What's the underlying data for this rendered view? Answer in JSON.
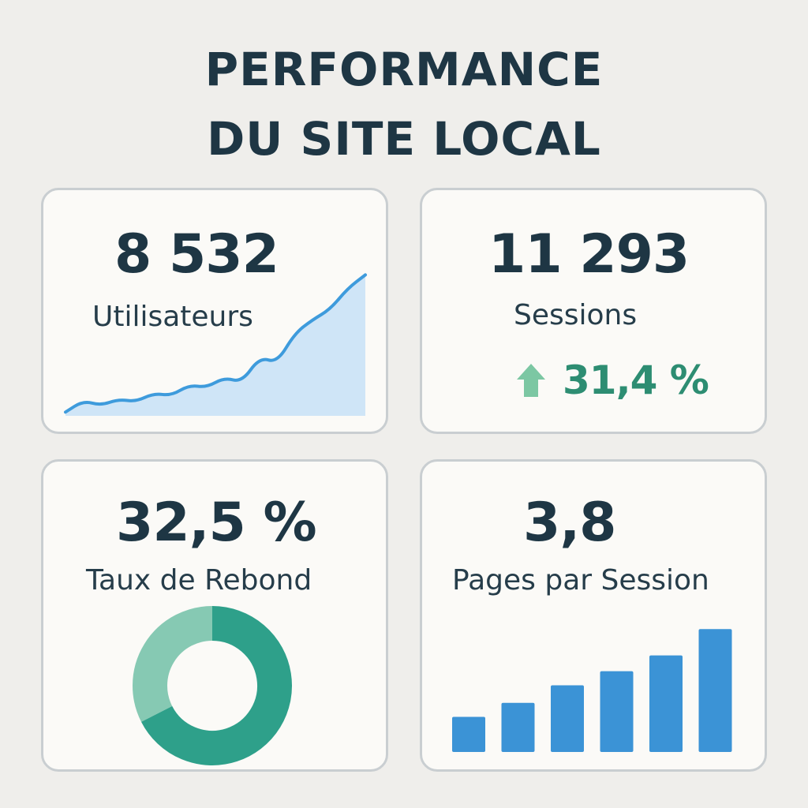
{
  "title": {
    "line1": "PERFORMANCE",
    "line2": "DU SITE LOCAL"
  },
  "cards": {
    "users": {
      "value": "8 532",
      "label": "Utilisateurs"
    },
    "sessions": {
      "value": "11 293",
      "label": "Sessions",
      "trend_icon": "arrow-up-icon",
      "trend": "31,4 %"
    },
    "bounce": {
      "value": "32,5 %",
      "label": "Taux de Rebond"
    },
    "pages": {
      "value": "3,8",
      "label": "Pages par Session"
    }
  },
  "colors": {
    "line": "#3e9bdc",
    "area": "#cfe5f7",
    "donut_light": "#86c9b3",
    "donut_dark": "#2ea08a",
    "bars": "#3b93d6",
    "trend": "#2d8d72",
    "trend_arrow": "#7cc7a3"
  },
  "chart_data": [
    {
      "type": "area",
      "x": [
        0,
        1,
        2,
        3,
        4,
        5,
        6,
        7,
        8,
        9,
        10,
        11,
        12,
        13,
        14,
        15,
        16,
        17
      ],
      "values": [
        5,
        20,
        14,
        22,
        19,
        30,
        27,
        41,
        38,
        51,
        45,
        78,
        71,
        110,
        128,
        142,
        170,
        188
      ],
      "ylim": [
        0,
        200
      ]
    },
    {
      "type": "pie",
      "labels": [
        "",
        ""
      ],
      "values": [
        32.5,
        67.5
      ]
    },
    {
      "type": "bar",
      "categories": [
        "",
        "",
        "",
        "",
        "",
        ""
      ],
      "values": [
        2.0,
        2.8,
        3.8,
        4.6,
        5.5,
        7.0
      ],
      "ylim": [
        0,
        8
      ]
    }
  ]
}
